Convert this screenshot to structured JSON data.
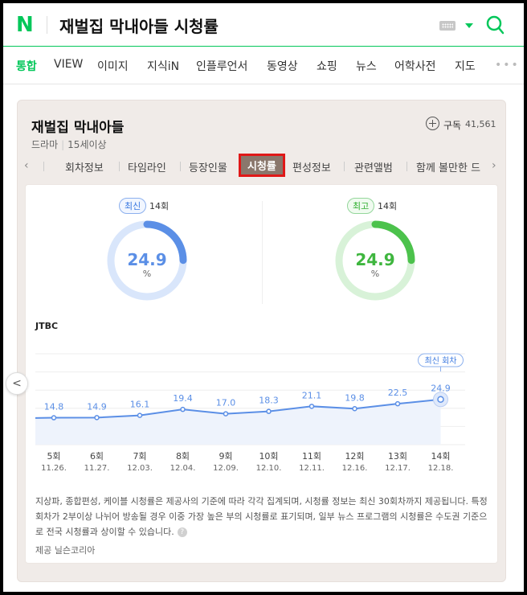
{
  "header": {
    "logo": "N",
    "query": "재벌집 막내아들 시청률"
  },
  "nav": {
    "items": [
      "통합",
      "VIEW",
      "이미지",
      "지식iN",
      "인플루언서",
      "동영상",
      "쇼핑",
      "뉴스",
      "어학사전",
      "지도"
    ],
    "more": "•••"
  },
  "card": {
    "title": "재벌집 막내아들",
    "subscribe_label": "구독",
    "subscribe_count": "41,561",
    "genre": "드라마",
    "rating": "15세이상",
    "tabs": [
      "회차정보",
      "타임라인",
      "등장인물",
      "시청률",
      "편성정보",
      "관련앨범",
      "함께 볼만한 드"
    ],
    "active_tab": "시청률",
    "prev_arrow": "‹",
    "next_arrow": "›"
  },
  "latest": {
    "badge": "최신",
    "episode": "14회",
    "value": "24.9",
    "unit": "%",
    "fraction": 0.249,
    "color": "#5b8fe6",
    "track": "#d9e6fb"
  },
  "best": {
    "badge": "최고",
    "episode": "14회",
    "value": "24.9",
    "unit": "%",
    "fraction": 0.249,
    "color": "#4cc24c",
    "track": "#d8f2d8"
  },
  "channel": "JTBC",
  "chart_data": {
    "type": "area",
    "categories": [
      "5회",
      "6회",
      "7회",
      "8회",
      "9회",
      "10회",
      "11회",
      "12회",
      "13회",
      "14회"
    ],
    "dates": [
      "11.26.",
      "11.27.",
      "12.03.",
      "12.04.",
      "12.09.",
      "12.10.",
      "12.11.",
      "12.16.",
      "12.17.",
      "12.18."
    ],
    "values": [
      14.8,
      14.9,
      16.1,
      19.4,
      17.0,
      18.3,
      21.1,
      19.8,
      22.5,
      24.9
    ],
    "ylim": [
      0,
      50
    ],
    "callout": "최신 회차",
    "line_color": "#5b8fe6",
    "fill_color": "#eef3fc"
  },
  "note": "지상파, 종합편성, 케이블 시청률은 제공사의 기준에 따라 각각 집계되며, 시청률 정보는 최신 30회차까지 제공됩니다. 특정 회차가 2부이상 나뉘어 방송될 경우 이중 가장 높은 부의 시청률로 표기되며, 일부 뉴스 프로그램의 시청률은 수도권 기준으로 전국 시청률과 상이할 수 있습니다.",
  "help": "?",
  "provider": "제공 닐슨코리아",
  "side_arrow": "<"
}
